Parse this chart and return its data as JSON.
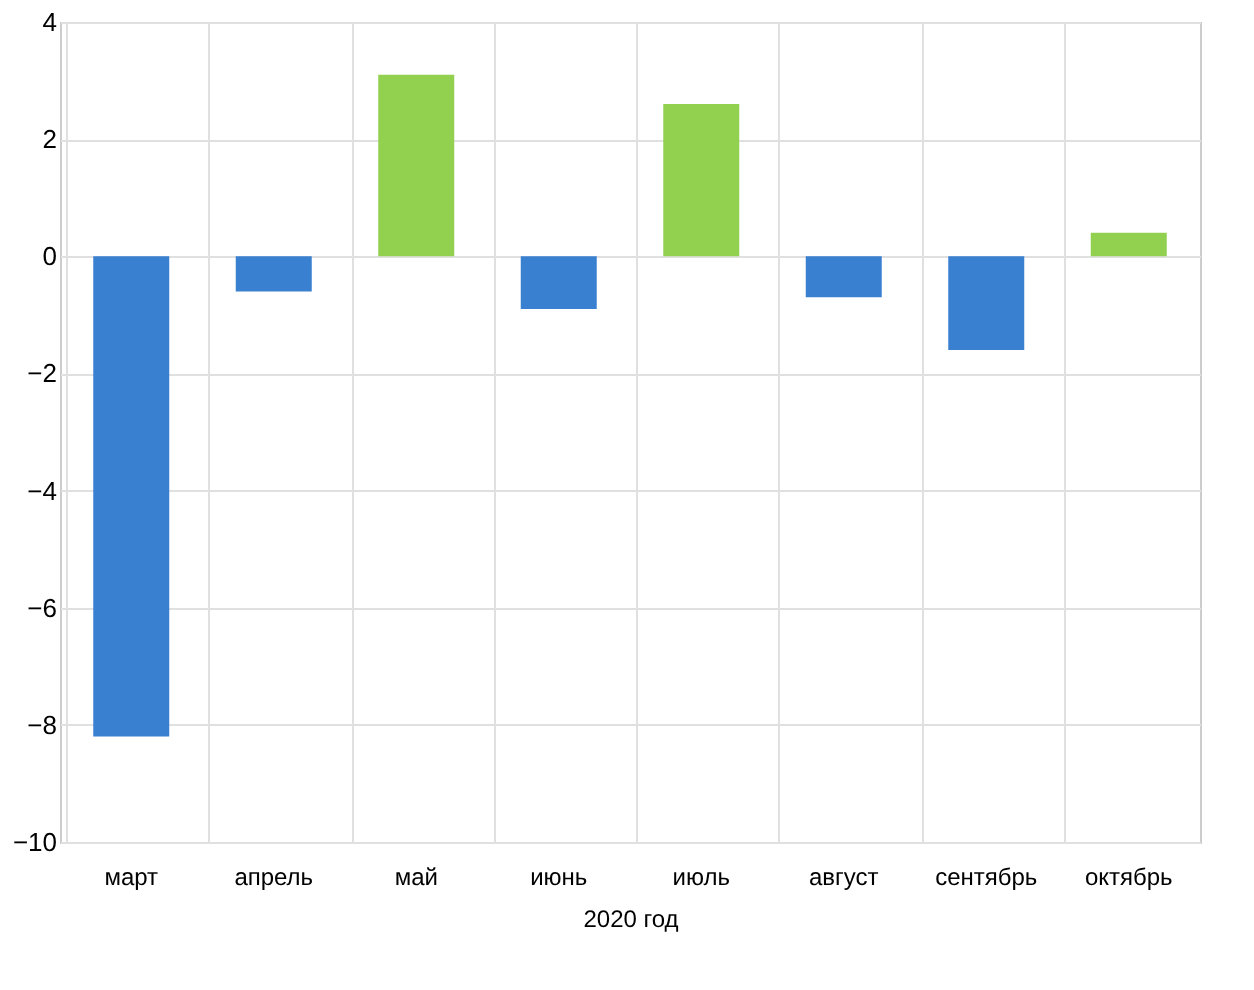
{
  "chart_data": {
    "type": "bar",
    "xlabel": "2020 год",
    "categories": [
      "март",
      "апрель",
      "май",
      "июнь",
      "июль",
      "август",
      "сентябрь",
      "октябрь"
    ],
    "values": [
      -8.2,
      -0.6,
      3.1,
      -0.9,
      2.6,
      -0.7,
      -1.6,
      0.4
    ],
    "colors": [
      "#3a80d0",
      "#3a80d0",
      "#92d050",
      "#3a80d0",
      "#92d050",
      "#3a80d0",
      "#3a80d0",
      "#92d050"
    ],
    "ylim": [
      -10,
      4
    ],
    "yticks": [
      -10,
      -8,
      -6,
      -4,
      -2,
      0,
      2,
      4
    ],
    "grid": true
  }
}
